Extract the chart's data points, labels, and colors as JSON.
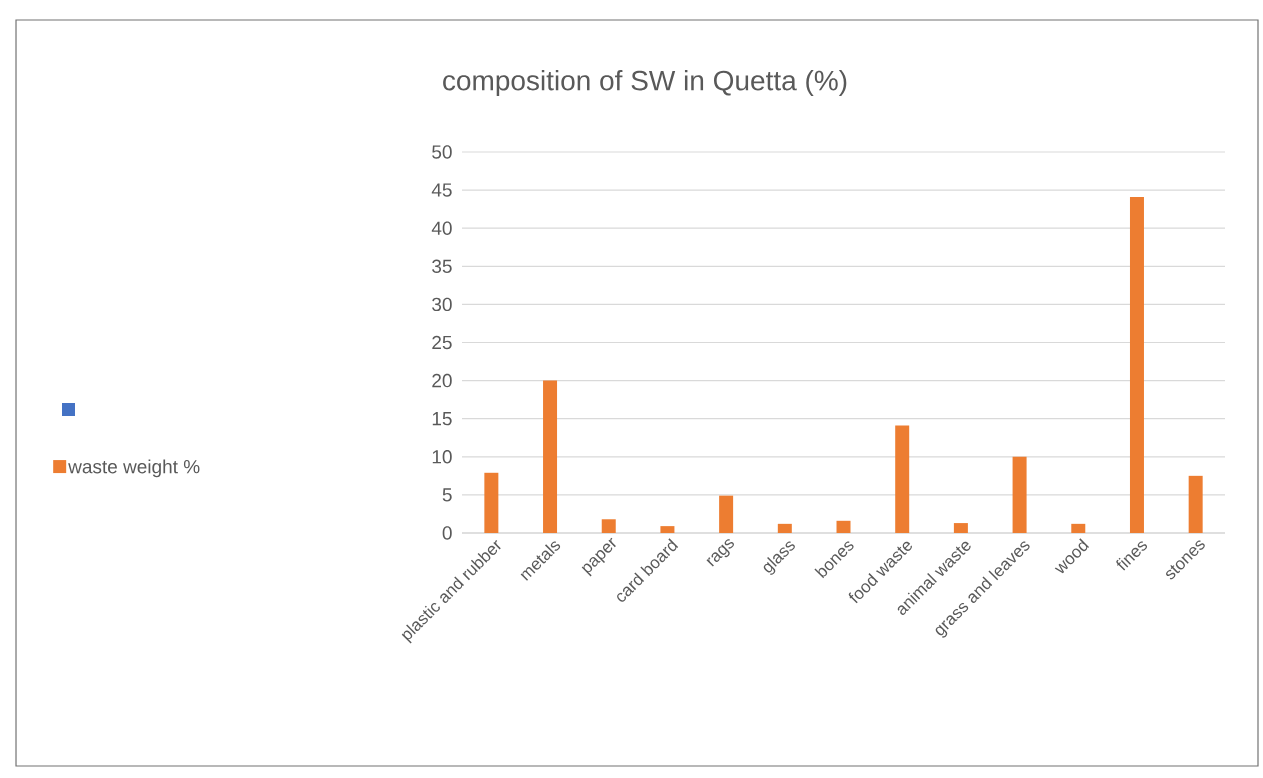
{
  "chart_data": {
    "type": "bar",
    "title": "composition of SW in Quetta (%)",
    "categories": [
      "plastic and rubber",
      "metals",
      "paper",
      "card board",
      "rags",
      "glass",
      "bones",
      "food waste",
      "animal waste",
      "grass and leaves",
      "wood",
      "fines",
      "stones"
    ],
    "series": [
      {
        "name": "waste weight %",
        "color": "#ed7d31",
        "values": [
          7.9,
          20,
          1.8,
          0.9,
          4.9,
          1.2,
          1.6,
          14.1,
          1.3,
          10,
          1.2,
          44.1,
          7.5
        ]
      }
    ],
    "ylim": [
      0,
      50
    ],
    "yticks": [
      0,
      5,
      10,
      15,
      20,
      25,
      30,
      35,
      40,
      45,
      50
    ],
    "grid": "y",
    "legend": "left"
  }
}
